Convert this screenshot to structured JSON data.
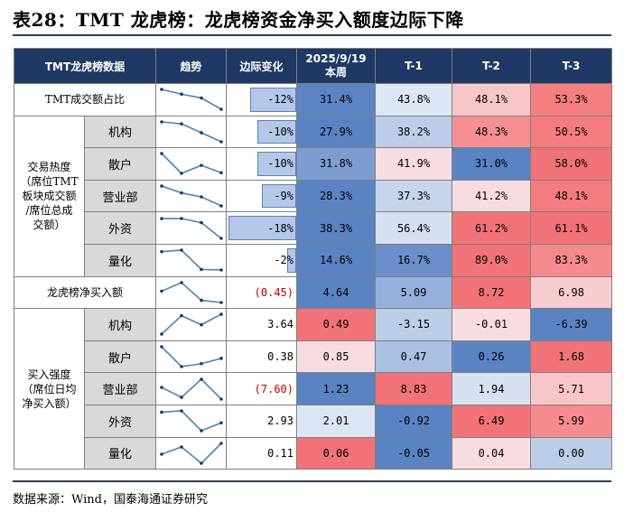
{
  "title": "表28：TMT 龙虎榜：龙虎榜资金净买入额度边际下降",
  "source": "数据来源：Wind，国泰海通证券研究",
  "colors": {
    "header_bg": "#1f3864",
    "bar_fill": "#b4c7e7",
    "negative_text": "#c00000",
    "spark_line": "#4a86b0"
  },
  "header": {
    "col1": "TMT龙虎榜数据",
    "col2": "趋势",
    "col3": "边际变化",
    "col4_line1": "2025/9/19",
    "col4_line2": "本周",
    "col5": "T-1",
    "col6": "T-2",
    "col7": "T-3"
  },
  "groups": {
    "share": "TMT成交额占比",
    "heat_line1": "交易热度",
    "heat_line2": "（席位TMT",
    "heat_line3": "板块成交额",
    "heat_line4": "/席位总成",
    "heat_line5": "交额）",
    "net": "龙虎榜净买入额",
    "strength_line1": "买入强度",
    "strength_line2": "（席位日均",
    "strength_line3": "净买入额）"
  },
  "rows": [
    {
      "sub": "",
      "marg": "-12%",
      "marg_frac": 0.66,
      "vals": [
        "31.4%",
        "43.8%",
        "48.1%",
        "53.3%"
      ],
      "series": [
        31.4,
        43.8,
        48.1,
        53.3
      ],
      "bg": [
        "#5b84c4",
        "#dde6f4",
        "#f8c6c9",
        "#f47e80"
      ]
    },
    {
      "sub": "机构",
      "marg": "-10%",
      "marg_frac": 0.55,
      "vals": [
        "27.9%",
        "38.2%",
        "48.3%",
        "50.5%"
      ],
      "series": [
        27.9,
        38.2,
        48.3,
        50.5
      ],
      "bg": [
        "#5a83c3",
        "#bdcde9",
        "#f58f92",
        "#f47c7f"
      ]
    },
    {
      "sub": "散户",
      "marg": "-10%",
      "marg_frac": 0.55,
      "vals": [
        "31.8%",
        "41.9%",
        "31.0%",
        "58.0%"
      ],
      "series": [
        31.8,
        41.9,
        31.0,
        58.0
      ],
      "bg": [
        "#7d9dd1",
        "#f8dde0",
        "#5a83c3",
        "#f27377"
      ]
    },
    {
      "sub": "营业部",
      "marg": "-9%",
      "marg_frac": 0.49,
      "vals": [
        "28.3%",
        "37.3%",
        "41.2%",
        "48.1%"
      ],
      "series": [
        28.3,
        37.3,
        41.2,
        48.1
      ],
      "bg": [
        "#5a83c3",
        "#c6d4ec",
        "#f8dde0",
        "#f47c7f"
      ]
    },
    {
      "sub": "外资",
      "marg": "-18%",
      "marg_frac": 0.99,
      "vals": [
        "38.3%",
        "56.4%",
        "61.2%",
        "61.1%"
      ],
      "series": [
        38.3,
        56.4,
        61.2,
        61.1
      ],
      "bg": [
        "#5a83c3",
        "#d6e0f1",
        "#f27377",
        "#f27377"
      ]
    },
    {
      "sub": "量化",
      "marg": "-2%",
      "marg_frac": 0.11,
      "vals": [
        "14.6%",
        "16.7%",
        "89.0%",
        "83.3%"
      ],
      "series": [
        14.6,
        16.7,
        89.0,
        83.3
      ],
      "bg": [
        "#5a83c3",
        "#6a8fc9",
        "#f27377",
        "#f58b8e"
      ]
    },
    {
      "sub": "",
      "marg": "(0.45)",
      "marg_neg": true,
      "vals": [
        "4.64",
        "5.09",
        "8.72",
        "6.98"
      ],
      "series": [
        4.64,
        5.09,
        8.72,
        6.98
      ],
      "bg": [
        "#5a83c3",
        "#95b0db",
        "#f27377",
        "#f8cdd0"
      ]
    },
    {
      "sub": "机构",
      "marg": "3.64",
      "vals": [
        "0.49",
        "-3.15",
        "-0.01",
        "-6.39"
      ],
      "series": [
        0.49,
        -3.15,
        -0.01,
        -6.39
      ],
      "bg": [
        "#f27377",
        "#bccde8",
        "#f8dde0",
        "#5a83c3"
      ]
    },
    {
      "sub": "散户",
      "marg": "0.38",
      "vals": [
        "0.85",
        "0.47",
        "0.26",
        "1.68"
      ],
      "series": [
        0.85,
        0.47,
        0.26,
        1.68
      ],
      "bg": [
        "#f8dde0",
        "#a9c0e2",
        "#5a83c3",
        "#f27377"
      ]
    },
    {
      "sub": "营业部",
      "marg": "(7.60)",
      "marg_neg": true,
      "vals": [
        "1.23",
        "8.83",
        "1.94",
        "5.71"
      ],
      "series": [
        1.23,
        8.83,
        1.94,
        5.71
      ],
      "bg": [
        "#5a83c3",
        "#f27377",
        "#d6e0f1",
        "#f8c6c9"
      ]
    },
    {
      "sub": "外资",
      "marg": "2.93",
      "vals": [
        "2.01",
        "-0.92",
        "6.49",
        "5.99"
      ],
      "series": [
        2.01,
        -0.92,
        6.49,
        5.99
      ],
      "bg": [
        "#dce5f3",
        "#5a83c3",
        "#f27377",
        "#f58b8e"
      ]
    },
    {
      "sub": "量化",
      "marg": "0.11",
      "vals": [
        "0.06",
        "-0.05",
        "0.04",
        "0.00"
      ],
      "series": [
        0.06,
        -0.05,
        0.04,
        0.0
      ],
      "bg": [
        "#f27377",
        "#5a83c3",
        "#f8dde0",
        "#bccde8"
      ]
    }
  ]
}
